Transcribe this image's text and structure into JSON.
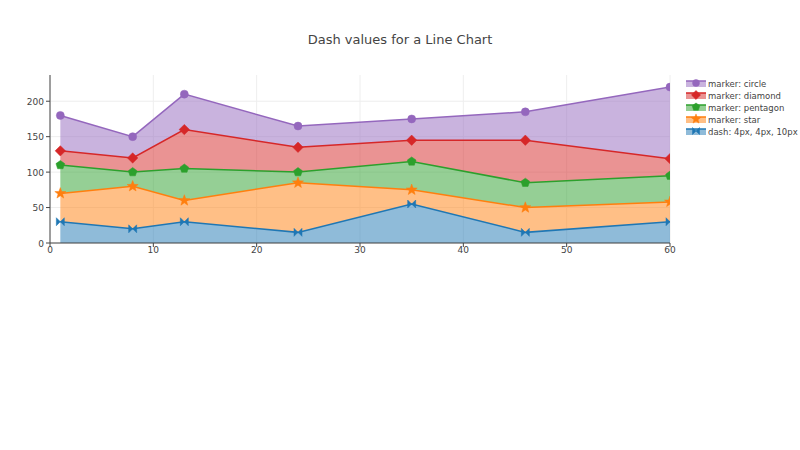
{
  "chart_data": {
    "type": "area",
    "title": "Dash values for a Line Chart",
    "stacked": true,
    "grid": true,
    "legend": "right",
    "x": [
      1,
      8,
      13,
      24,
      35,
      46,
      60
    ],
    "xlim": [
      0,
      60
    ],
    "xticks": [
      0,
      10,
      20,
      30,
      40,
      50,
      60
    ],
    "ylim": [
      0,
      237
    ],
    "yticks": [
      0,
      50,
      100,
      150,
      200
    ],
    "series": [
      {
        "name": "dash: 4px, 4px, 10px",
        "color": "#1f77b4",
        "marker": "bowtie",
        "values": [
          30,
          20,
          30,
          15,
          55,
          15,
          30
        ]
      },
      {
        "name": "marker: star",
        "color": "#ff7f0e",
        "marker": "star",
        "values": [
          40,
          60,
          30,
          70,
          20,
          35,
          28
        ]
      },
      {
        "name": "marker: pentagon",
        "color": "#2ca02c",
        "marker": "pentagon",
        "values": [
          40,
          20,
          45,
          15,
          40,
          35,
          37
        ]
      },
      {
        "name": "marker: diamond",
        "color": "#d62728",
        "marker": "diamond",
        "values": [
          20,
          20,
          55,
          35,
          30,
          60,
          24
        ]
      },
      {
        "name": "marker: circle",
        "color": "#9467bd",
        "marker": "circle",
        "values": [
          50,
          30,
          50,
          30,
          30,
          40,
          101
        ]
      }
    ]
  }
}
